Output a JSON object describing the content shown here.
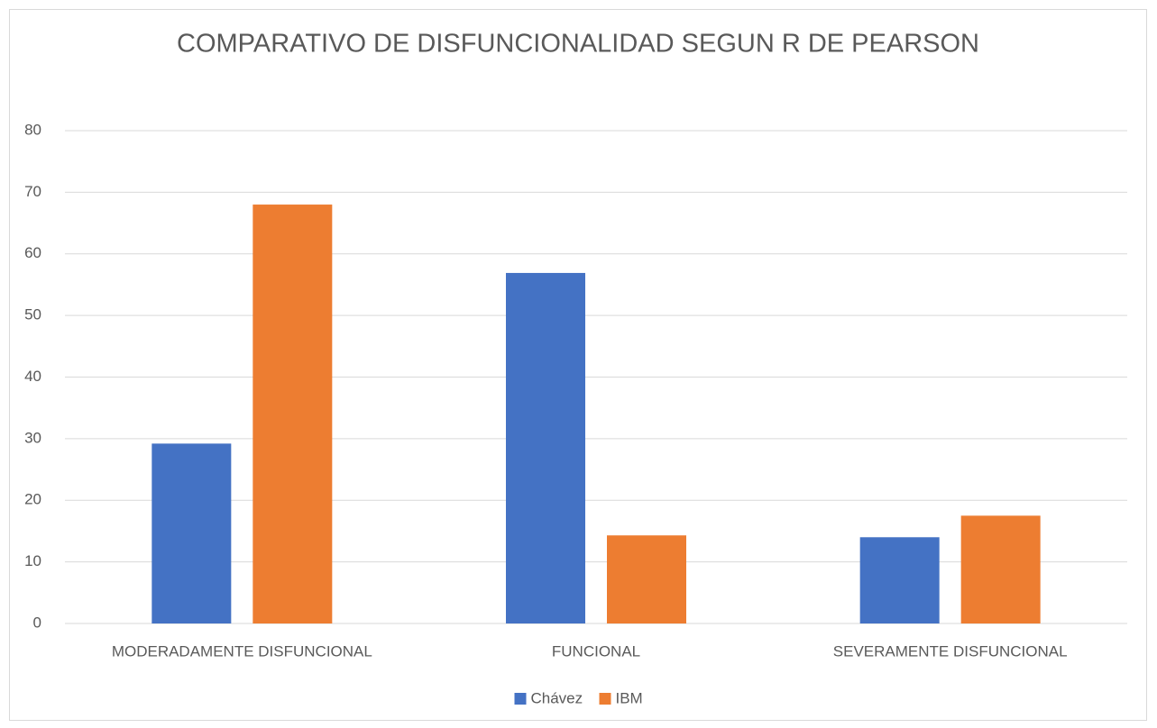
{
  "chart_data": {
    "type": "bar",
    "title": "COMPARATIVO DE DISFUNCIONALIDAD SEGUN R  DE PEARSON",
    "categories": [
      "MODERADAMENTE DISFUNCIONAL",
      "FUNCIONAL",
      "SEVERAMENTE DISFUNCIONAL"
    ],
    "series": [
      {
        "name": "Chávez",
        "color": "#4472c4",
        "values": [
          29.2,
          56.9,
          14.0
        ]
      },
      {
        "name": "IBM",
        "color": "#ed7d31",
        "values": [
          68.0,
          14.3,
          17.5
        ]
      }
    ],
    "ylim": [
      0,
      80
    ],
    "yticks": [
      0,
      10,
      20,
      30,
      40,
      50,
      60,
      70,
      80
    ],
    "grid": true,
    "legend": "bottom"
  }
}
